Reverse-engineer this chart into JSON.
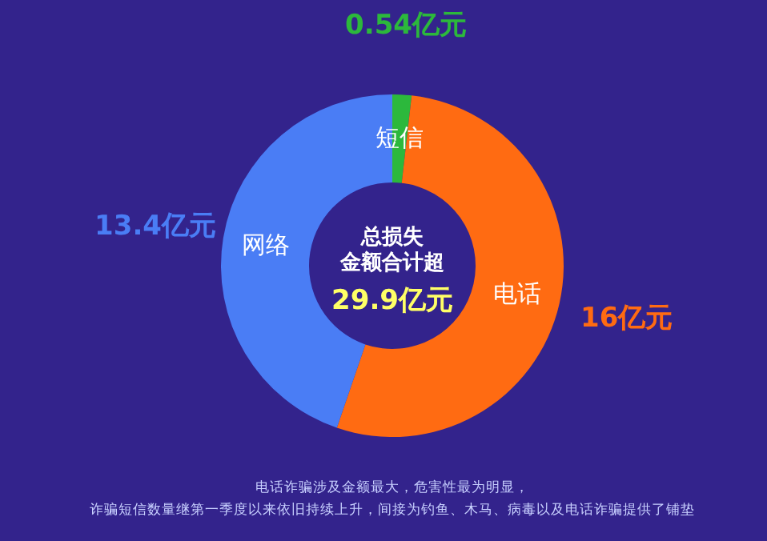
{
  "chart_data": {
    "type": "donut",
    "categories": [
      "短信",
      "电话",
      "网络"
    ],
    "values": [
      0.54,
      16,
      13.4
    ],
    "value_labels": [
      "0.54亿元",
      "16亿元",
      "13.4亿元"
    ],
    "colors": [
      "#2cb83c",
      "#ff6b12",
      "#4a7df5"
    ],
    "annotations": [
      "总损失",
      "金额合计超",
      "29.9亿元",
      "电话诈骗涉及金额最大，危害性最为明显，",
      "诈骗短信数量继第一季度以来依旧持续上升，间接为钓鱼、木马、病毒以及电话诈骗提供了铺垫"
    ]
  }
}
